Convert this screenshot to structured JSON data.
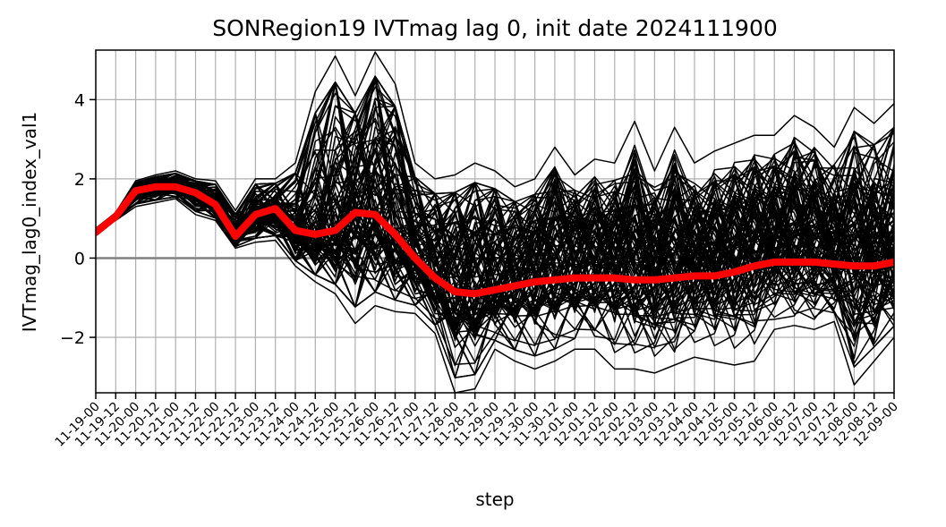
{
  "chart_data": {
    "type": "line",
    "title": "SONRegion19 IVTmag lag 0, init date 2024111900",
    "xlabel": "step",
    "ylabel": "IVTmag_lag0_index_val1",
    "ylim": [
      -3.4,
      5.25
    ],
    "yticks": [
      -2,
      0,
      2,
      4
    ],
    "ytick_labels": [
      "−2",
      "0",
      "2",
      "4"
    ],
    "categories": [
      "11-19-00",
      "11-19-12",
      "11-20-00",
      "11-20-12",
      "11-21-00",
      "11-21-12",
      "11-22-00",
      "11-22-12",
      "11-23-00",
      "11-23-12",
      "11-24-00",
      "11-24-12",
      "11-25-00",
      "11-25-12",
      "11-26-00",
      "11-26-12",
      "11-27-00",
      "11-27-12",
      "11-28-00",
      "11-28-12",
      "11-29-00",
      "11-29-12",
      "11-30-00",
      "11-30-12",
      "12-01-00",
      "12-01-12",
      "12-02-00",
      "12-02-12",
      "12-03-00",
      "12-03-12",
      "12-04-00",
      "12-04-12",
      "12-05-00",
      "12-05-12",
      "12-06-00",
      "12-06-12",
      "12-07-00",
      "12-07-12",
      "12-08-00",
      "12-08-12",
      "12-09-00"
    ],
    "grid": true,
    "zero_line": {
      "y": 0,
      "color": "#808080"
    },
    "ensemble_members": 100,
    "ensemble_spread": {
      "min": [
        0.65,
        0.95,
        1.3,
        1.4,
        1.5,
        1.1,
        0.95,
        0.25,
        0.4,
        0.45,
        -0.2,
        -0.6,
        -0.9,
        -1.65,
        -1.2,
        -1.35,
        -1.4,
        -1.9,
        -3.4,
        -3.3,
        -2.3,
        -2.6,
        -2.8,
        -2.6,
        -2.3,
        -2.3,
        -2.8,
        -2.8,
        -2.9,
        -2.7,
        -2.5,
        -2.6,
        -2.7,
        -2.6,
        -1.8,
        -1.7,
        -1.8,
        -1.6,
        -3.2,
        -2.6,
        -2.0
      ],
      "max": [
        0.75,
        1.15,
        1.95,
        2.1,
        2.2,
        2.0,
        1.95,
        1.2,
        2.0,
        2.0,
        2.4,
        4.2,
        5.1,
        4.1,
        5.2,
        4.4,
        2.4,
        2.0,
        2.1,
        2.4,
        2.2,
        1.8,
        2.0,
        2.8,
        2.1,
        2.5,
        2.4,
        3.45,
        2.2,
        3.3,
        2.4,
        2.7,
        2.9,
        3.1,
        3.1,
        3.6,
        3.3,
        2.8,
        3.8,
        3.4,
        3.9
      ]
    },
    "series": [
      {
        "values": [
          0.65,
          1.05,
          1.7,
          1.8,
          1.8,
          1.65,
          1.35,
          0.55,
          1.1,
          1.25,
          0.7,
          0.6,
          0.7,
          1.15,
          1.1,
          0.6,
          0.0,
          -0.5,
          -0.85,
          -0.9,
          -0.8,
          -0.7,
          -0.6,
          -0.55,
          -0.5,
          -0.5,
          -0.5,
          -0.55,
          -0.55,
          -0.5,
          -0.45,
          -0.45,
          -0.35,
          -0.2,
          -0.1,
          -0.1,
          -0.1,
          -0.15,
          -0.2,
          -0.2,
          -0.1
        ],
        "color": "#ff0000"
      }
    ]
  }
}
